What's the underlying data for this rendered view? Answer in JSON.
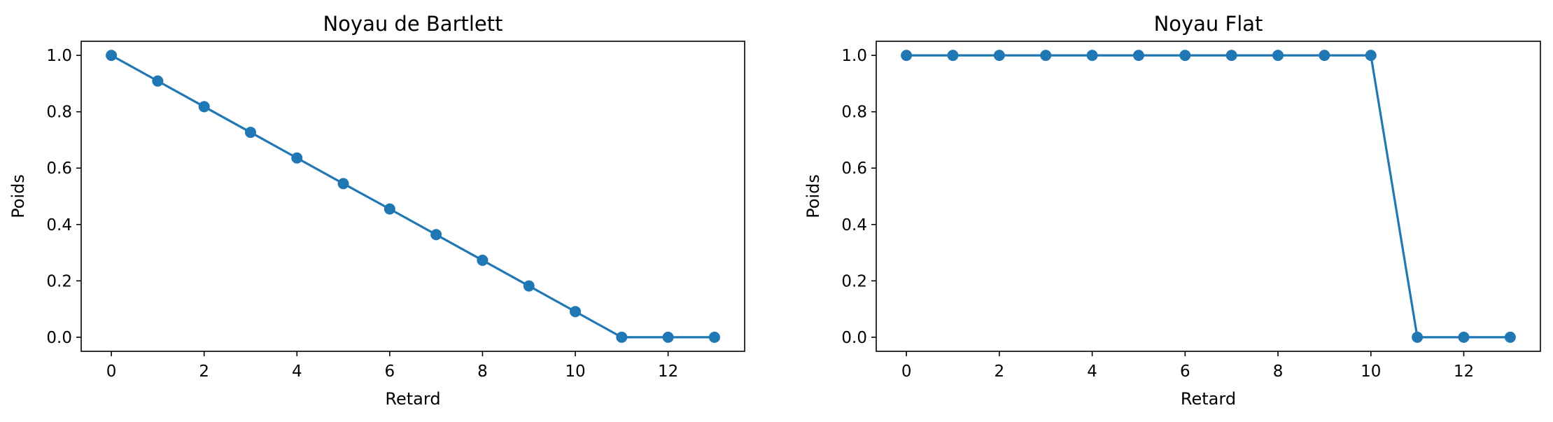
{
  "chart_data": [
    {
      "type": "line",
      "title": "Noyau de Bartlett",
      "xlabel": "Retard",
      "ylabel": "Poids",
      "xlim": [
        -0.65,
        13.65
      ],
      "ylim": [
        -0.05,
        1.05
      ],
      "xticks": [
        0,
        2,
        4,
        6,
        8,
        10,
        12
      ],
      "yticks": [
        0.0,
        0.2,
        0.4,
        0.6,
        0.8,
        1.0
      ],
      "xtick_labels": [
        "0",
        "2",
        "4",
        "6",
        "8",
        "10",
        "12"
      ],
      "ytick_labels": [
        "0.0",
        "0.2",
        "0.4",
        "0.6",
        "0.8",
        "1.0"
      ],
      "grid": false,
      "color": "#1f77b4",
      "marker": "circle",
      "x": [
        0,
        1,
        2,
        3,
        4,
        5,
        6,
        7,
        8,
        9,
        10,
        11,
        12,
        13
      ],
      "y": [
        1.0,
        0.909,
        0.818,
        0.727,
        0.636,
        0.545,
        0.455,
        0.364,
        0.273,
        0.182,
        0.091,
        0.0,
        0.0,
        0.0
      ]
    },
    {
      "type": "line",
      "title": "Noyau Flat",
      "xlabel": "Retard",
      "ylabel": "Poids",
      "xlim": [
        -0.65,
        13.65
      ],
      "ylim": [
        -0.05,
        1.05
      ],
      "xticks": [
        0,
        2,
        4,
        6,
        8,
        10,
        12
      ],
      "yticks": [
        0.0,
        0.2,
        0.4,
        0.6,
        0.8,
        1.0
      ],
      "xtick_labels": [
        "0",
        "2",
        "4",
        "6",
        "8",
        "10",
        "12"
      ],
      "ytick_labels": [
        "0.0",
        "0.2",
        "0.4",
        "0.6",
        "0.8",
        "1.0"
      ],
      "grid": false,
      "color": "#1f77b4",
      "marker": "circle",
      "x": [
        0,
        1,
        2,
        3,
        4,
        5,
        6,
        7,
        8,
        9,
        10,
        11,
        12,
        13
      ],
      "y": [
        1.0,
        1.0,
        1.0,
        1.0,
        1.0,
        1.0,
        1.0,
        1.0,
        1.0,
        1.0,
        1.0,
        0.0,
        0.0,
        0.0
      ]
    }
  ]
}
